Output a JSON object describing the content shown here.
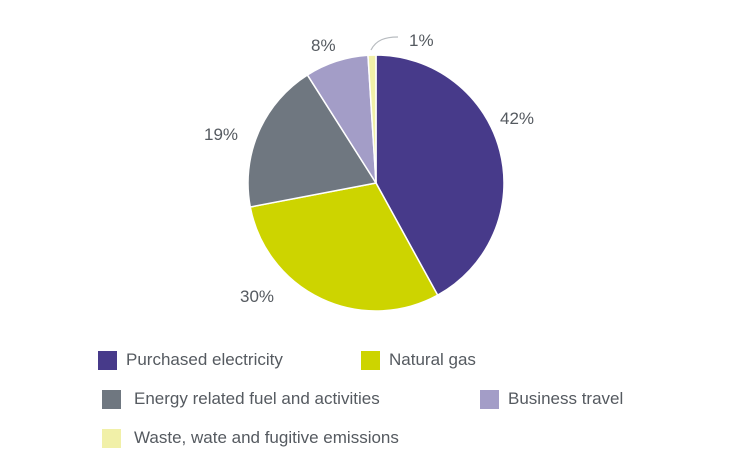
{
  "chart_data": {
    "type": "pie",
    "title": "",
    "series": [
      {
        "name": "Purchased electricity",
        "value": 42,
        "label": "42%",
        "color": "#473a8a"
      },
      {
        "name": "Natural gas",
        "value": 30,
        "label": "30%",
        "color": "#cdd400"
      },
      {
        "name": "Energy related fuel and activities",
        "value": 19,
        "label": "19%",
        "color": "#6f7780"
      },
      {
        "name": "Business travel",
        "value": 8,
        "label": "8%",
        "color": "#a39dc7"
      },
      {
        "name": "Waste, wate and fugitive emissions",
        "value": 1,
        "label": "1%",
        "color": "#f1f0a8"
      }
    ],
    "legend_position": "bottom"
  }
}
